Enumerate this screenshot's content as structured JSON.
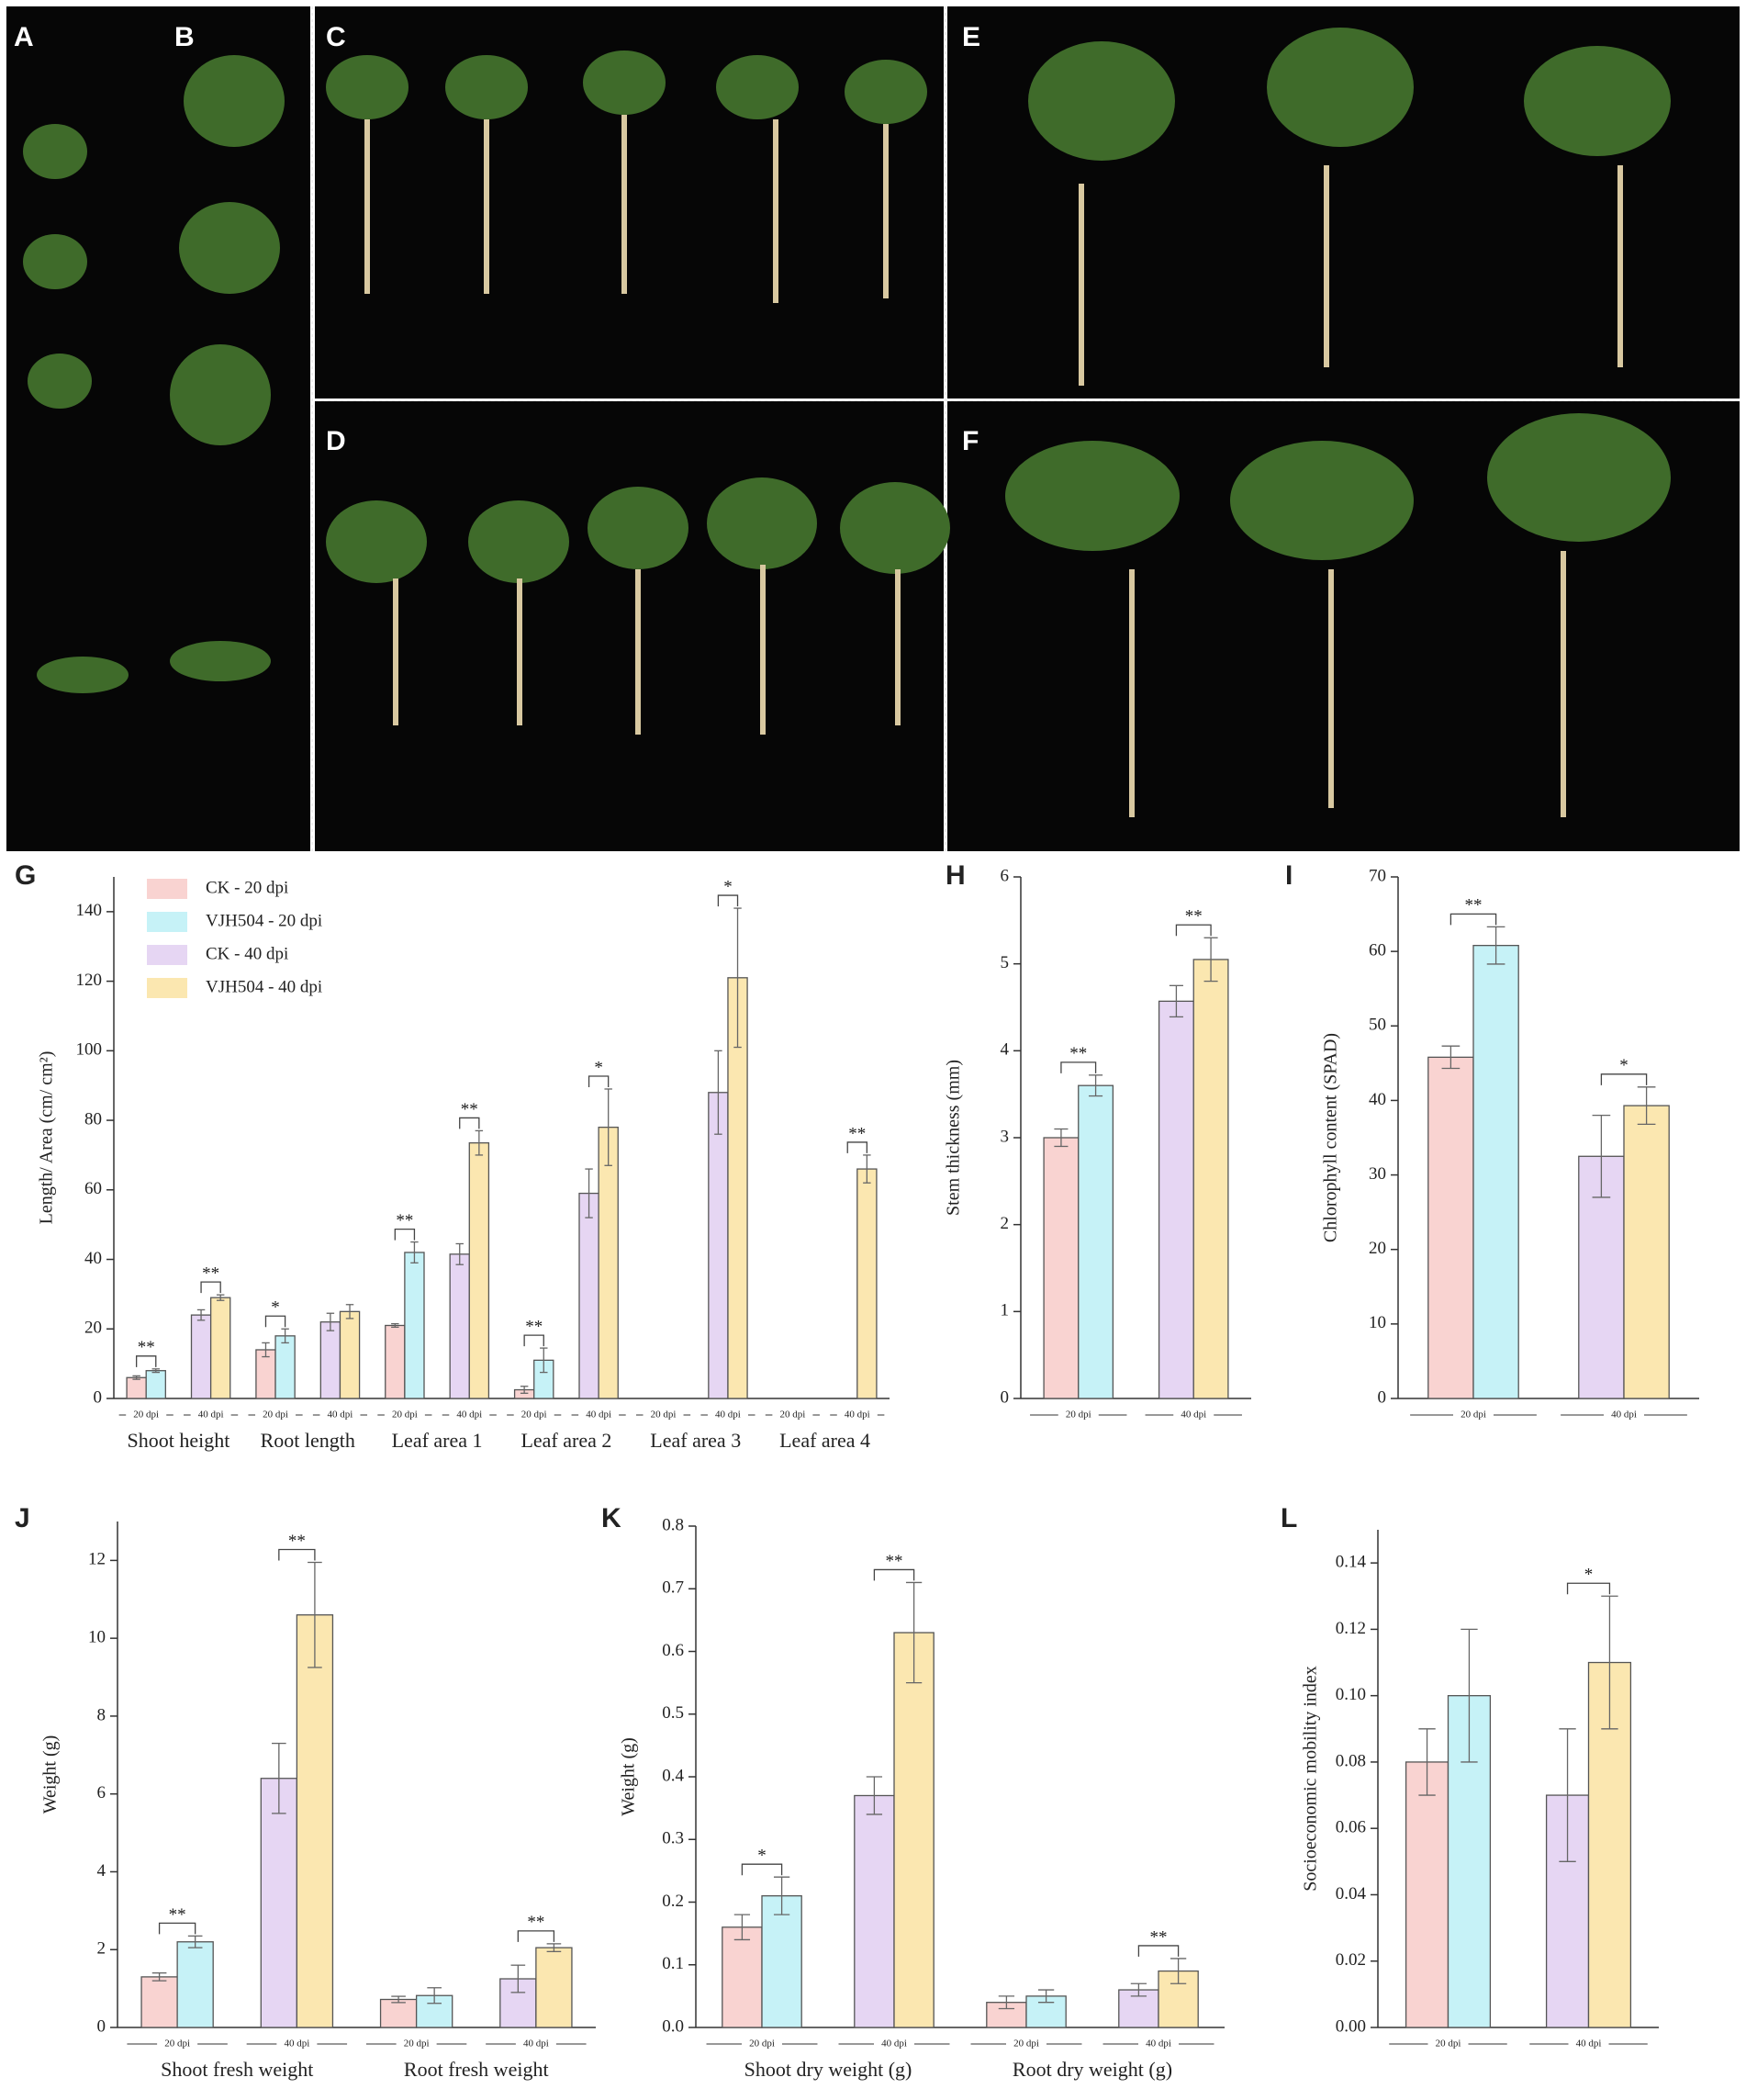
{
  "panels": [
    "A",
    "B",
    "C",
    "D",
    "E",
    "F"
  ],
  "chart_data": [
    {
      "type": "bar",
      "panel": "G",
      "ylabel": "Length/ Area (cm/ cm²)",
      "categories": [
        "Shoot height",
        "Root length",
        "Leaf area 1",
        "Leaf area 2",
        "Leaf area 3",
        "Leaf area 4"
      ],
      "dpi_labels": [
        "20 dpi",
        "40 dpi"
      ],
      "ylim": [
        0,
        150
      ],
      "yticks": [
        0,
        20,
        40,
        60,
        80,
        100,
        120,
        140
      ],
      "legend": true,
      "series": [
        {
          "name": "CK - 20 dpi",
          "color": "#f9d3d1",
          "values": [
            6,
            14,
            21,
            2.5,
            null,
            null
          ],
          "errors": [
            0.5,
            2,
            0.5,
            1,
            null,
            null
          ]
        },
        {
          "name": "VJH504 - 20 dpi",
          "color": "#c6f2f7",
          "values": [
            8,
            18,
            42,
            11,
            null,
            null
          ],
          "errors": [
            0.5,
            2,
            3,
            3.5,
            null,
            null
          ]
        },
        {
          "name": "CK - 40 dpi",
          "color": "#e6d6f3",
          "values": [
            24,
            22,
            41.5,
            59,
            88,
            null
          ],
          "errors": [
            1.5,
            2.5,
            3,
            7,
            12,
            null
          ]
        },
        {
          "name": "VJH504 - 40 dpi",
          "color": "#fbe7b0",
          "values": [
            29,
            25,
            73.5,
            78,
            121,
            66
          ],
          "errors": [
            0.8,
            2,
            3.5,
            11,
            20,
            4
          ]
        }
      ],
      "significance": [
        [
          "**",
          "**"
        ],
        [
          "*",
          null
        ],
        [
          "**",
          "**"
        ],
        [
          "**",
          "*"
        ],
        [
          null,
          "*"
        ],
        [
          null,
          "**"
        ]
      ]
    },
    {
      "type": "bar",
      "panel": "H",
      "ylabel": "Stem thickness (mm)",
      "dpi_labels": [
        "20 dpi",
        "40 dpi"
      ],
      "ylim": [
        0,
        6
      ],
      "yticks": [
        0,
        1,
        2,
        3,
        4,
        5,
        6
      ],
      "series": [
        {
          "color": "#f9d3d1",
          "values": [
            3.0
          ],
          "errors": [
            0.1
          ]
        },
        {
          "color": "#c6f2f7",
          "values": [
            3.6
          ],
          "errors": [
            0.12
          ]
        },
        {
          "color": "#e6d6f3",
          "values": [
            4.57
          ],
          "errors": [
            0.18
          ]
        },
        {
          "color": "#fbe7b0",
          "values": [
            5.05
          ],
          "errors": [
            0.25
          ]
        }
      ],
      "significance": [
        [
          "**",
          "**"
        ]
      ]
    },
    {
      "type": "bar",
      "panel": "I",
      "ylabel": "Chlorophyll content (SPAD)",
      "dpi_labels": [
        "20 dpi",
        "40 dpi"
      ],
      "ylim": [
        0,
        70
      ],
      "yticks": [
        0,
        10,
        20,
        30,
        40,
        50,
        60,
        70
      ],
      "series": [
        {
          "color": "#f9d3d1",
          "values": [
            45.8
          ],
          "errors": [
            1.5
          ]
        },
        {
          "color": "#c6f2f7",
          "values": [
            60.8
          ],
          "errors": [
            2.5
          ]
        },
        {
          "color": "#e6d6f3",
          "values": [
            32.5
          ],
          "errors": [
            5.5
          ]
        },
        {
          "color": "#fbe7b0",
          "values": [
            39.3
          ],
          "errors": [
            2.5
          ]
        }
      ],
      "significance": [
        [
          "**",
          "*"
        ]
      ]
    },
    {
      "type": "bar",
      "panel": "J",
      "ylabel": "Weight (g)",
      "categories": [
        "Shoot fresh weight",
        "Root fresh weight"
      ],
      "dpi_labels": [
        "20 dpi",
        "40 dpi"
      ],
      "ylim": [
        0,
        13
      ],
      "yticks": [
        0,
        2,
        4,
        6,
        8,
        10,
        12
      ],
      "series": [
        {
          "color": "#f9d3d1",
          "values": [
            1.3,
            0.72
          ],
          "errors": [
            0.1,
            0.08
          ]
        },
        {
          "color": "#c6f2f7",
          "values": [
            2.2,
            0.82
          ],
          "errors": [
            0.15,
            0.2
          ]
        },
        {
          "color": "#e6d6f3",
          "values": [
            6.4,
            1.25
          ],
          "errors": [
            0.9,
            0.35
          ]
        },
        {
          "color": "#fbe7b0",
          "values": [
            10.6,
            2.05
          ],
          "errors": [
            1.35,
            0.1
          ]
        }
      ],
      "significance": [
        [
          "**",
          "**"
        ],
        [
          null,
          "**"
        ]
      ]
    },
    {
      "type": "bar",
      "panel": "K",
      "ylabel": "Weight (g)",
      "categories": [
        "Shoot dry weight (g)",
        "Root dry weight (g)"
      ],
      "dpi_labels": [
        "20 dpi",
        "40 dpi"
      ],
      "ylim": [
        0,
        0.8
      ],
      "yticks": [
        {
          "value": 0,
          "label": "0.0"
        },
        0.1,
        0.2,
        0.3,
        0.4,
        0.5,
        0.6,
        0.7,
        0.8
      ],
      "series": [
        {
          "color": "#f9d3d1",
          "values": [
            0.16,
            0.04
          ],
          "errors": [
            0.02,
            0.01
          ]
        },
        {
          "color": "#c6f2f7",
          "values": [
            0.21,
            0.05
          ],
          "errors": [
            0.03,
            0.01
          ]
        },
        {
          "color": "#e6d6f3",
          "values": [
            0.37,
            0.06
          ],
          "errors": [
            0.03,
            0.01
          ]
        },
        {
          "color": "#fbe7b0",
          "values": [
            0.63,
            0.09
          ],
          "errors": [
            0.08,
            0.02
          ]
        }
      ],
      "significance": [
        [
          "*",
          "**"
        ],
        [
          null,
          "**"
        ]
      ]
    },
    {
      "type": "bar",
      "panel": "L",
      "ylabel": "Socioeconomic mobility index",
      "dpi_labels": [
        "20 dpi",
        "40 dpi"
      ],
      "ylim": [
        0,
        0.15
      ],
      "yticks": [
        {
          "value": 0,
          "label": "0.00"
        },
        0.02,
        0.04,
        0.06,
        0.08,
        {
          "value": 0.1,
          "label": "0.10"
        },
        0.12,
        0.14
      ],
      "series": [
        {
          "color": "#f9d3d1",
          "values": [
            0.08
          ],
          "errors": [
            0.01
          ]
        },
        {
          "color": "#c6f2f7",
          "values": [
            0.1
          ],
          "errors": [
            0.02
          ]
        },
        {
          "color": "#e6d6f3",
          "values": [
            0.07
          ],
          "errors": [
            0.02
          ]
        },
        {
          "color": "#fbe7b0",
          "values": [
            0.11
          ],
          "errors": [
            0.02
          ]
        }
      ],
      "significance": [
        [
          null,
          "*"
        ]
      ]
    }
  ]
}
